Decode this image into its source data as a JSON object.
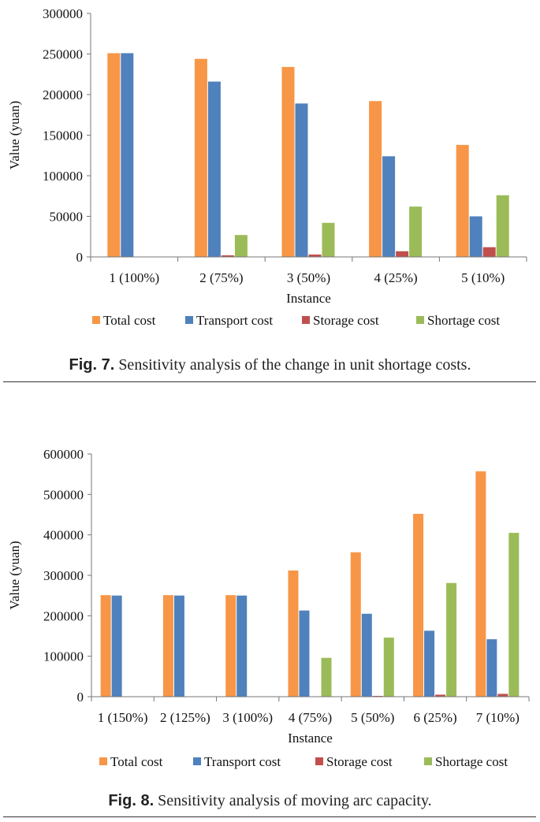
{
  "chart_data": [
    {
      "type": "bar",
      "xlabel": "Instance",
      "ylabel": "Value (yuan)",
      "ylim": [
        0,
        300000
      ],
      "yticks": [
        "0",
        "50000",
        "100000",
        "150000",
        "200000",
        "250000",
        "300000"
      ],
      "categories": [
        "1 (100%)",
        "2 (75%)",
        "3 (50%)",
        "4 (25%)",
        "5 (10%)"
      ],
      "series": [
        {
          "name": "Total cost",
          "color": "#F79646",
          "values": [
            251000,
            244000,
            234000,
            192000,
            138000
          ]
        },
        {
          "name": "Transport cost",
          "color": "#4F81BD",
          "values": [
            251000,
            216000,
            189000,
            124000,
            50000
          ]
        },
        {
          "name": "Storage cost",
          "color": "#C0504D",
          "values": [
            0,
            2000,
            3000,
            7000,
            12000
          ]
        },
        {
          "name": "Shortage cost",
          "color": "#9BBB59",
          "values": [
            0,
            27000,
            42000,
            62000,
            76000
          ]
        }
      ],
      "legend": "bottom",
      "grid": false
    },
    {
      "type": "bar",
      "xlabel": "Instance",
      "ylabel": "Value (yuan)",
      "ylim": [
        0,
        600000
      ],
      "yticks": [
        "0",
        "100000",
        "200000",
        "300000",
        "400000",
        "500000",
        "600000"
      ],
      "categories": [
        "1 (150%)",
        "2 (125%)",
        "3 (100%)",
        "4 (75%)",
        "5 (50%)",
        "6 (25%)",
        "7 (10%)"
      ],
      "series": [
        {
          "name": "Total cost",
          "color": "#F79646",
          "values": [
            251000,
            251000,
            251000,
            312000,
            357000,
            452000,
            557000
          ]
        },
        {
          "name": "Transport cost",
          "color": "#4F81BD",
          "values": [
            250000,
            250000,
            250000,
            213000,
            205000,
            163000,
            142000
          ]
        },
        {
          "name": "Storage cost",
          "color": "#C0504D",
          "values": [
            0,
            0,
            0,
            0,
            2000,
            5000,
            7000
          ]
        },
        {
          "name": "Shortage cost",
          "color": "#9BBB59",
          "values": [
            0,
            0,
            0,
            96000,
            146000,
            281000,
            405000
          ]
        }
      ],
      "legend": "bottom",
      "grid": false
    }
  ],
  "captions": [
    {
      "label": "Fig. 7.",
      "text": " Sensitivity analysis of the change in unit shortage costs."
    },
    {
      "label": "Fig. 8.",
      "text": " Sensitivity analysis of moving arc capacity."
    }
  ]
}
